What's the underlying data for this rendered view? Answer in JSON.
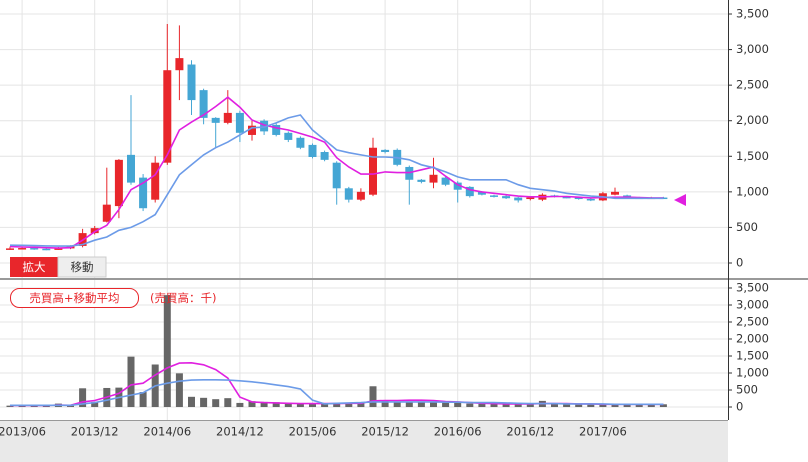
{
  "controls": [
    "拡大",
    "移動"
  ],
  "chart_data": [
    {
      "type": "candlestick",
      "x": [
        "2013/05",
        "2013/06",
        "2013/07",
        "2013/08",
        "2013/09",
        "2013/10",
        "2013/11",
        "2013/12",
        "2014/01",
        "2014/02",
        "2014/03",
        "2014/04",
        "2014/05",
        "2014/06",
        "2014/07",
        "2014/08",
        "2014/09",
        "2014/10",
        "2014/11",
        "2014/12",
        "2015/01",
        "2015/02",
        "2015/03",
        "2015/04",
        "2015/05",
        "2015/06",
        "2015/07",
        "2015/08",
        "2015/09",
        "2015/10",
        "2015/11",
        "2015/12",
        "2016/01",
        "2016/02",
        "2016/03",
        "2016/04",
        "2016/05",
        "2016/06",
        "2016/07",
        "2016/08",
        "2016/09",
        "2016/10",
        "2016/11",
        "2016/12",
        "2017/01",
        "2017/02",
        "2017/03",
        "2017/04",
        "2017/05",
        "2017/06",
        "2017/07",
        "2017/08",
        "2017/09",
        "2017/10",
        "2017/11"
      ],
      "open": [
        200,
        205,
        210,
        200,
        195,
        205,
        240,
        420,
        580,
        800,
        1520,
        1200,
        890,
        1410,
        2710,
        2790,
        2430,
        2040,
        1970,
        2110,
        1800,
        2000,
        1940,
        1830,
        1760,
        1660,
        1560,
        1410,
        1050,
        890,
        960,
        1590,
        1590,
        1350,
        1170,
        1130,
        1200,
        1130,
        1070,
        1000,
        950,
        940,
        920,
        900,
        890,
        950,
        930,
        920,
        900,
        880,
        960,
        950,
        920,
        910,
        920
      ],
      "high": [
        230,
        230,
        230,
        220,
        225,
        250,
        480,
        520,
        1340,
        1460,
        2360,
        1250,
        1500,
        3360,
        3340,
        2850,
        2450,
        2050,
        2430,
        2140,
        2000,
        2020,
        1960,
        1850,
        1780,
        1680,
        1580,
        1430,
        1070,
        1050,
        1760,
        1600,
        1610,
        1370,
        1180,
        1480,
        1220,
        1150,
        1080,
        1010,
        960,
        950,
        930,
        940,
        980,
        960,
        940,
        930,
        910,
        1000,
        1060,
        960,
        930,
        930,
        930
      ],
      "low": [
        185,
        190,
        185,
        180,
        185,
        195,
        220,
        400,
        570,
        630,
        1100,
        730,
        850,
        1380,
        2290,
        2080,
        1950,
        1620,
        1950,
        1700,
        1720,
        1800,
        1780,
        1700,
        1600,
        1470,
        1430,
        820,
        850,
        870,
        940,
        1540,
        1360,
        820,
        1120,
        1050,
        1080,
        850,
        920,
        950,
        920,
        900,
        850,
        880,
        870,
        920,
        910,
        890,
        870,
        870,
        950,
        900,
        900,
        900,
        900
      ],
      "close": [
        205,
        210,
        200,
        195,
        205,
        240,
        420,
        490,
        820,
        1450,
        1130,
        770,
        1410,
        2710,
        2880,
        2290,
        2040,
        1970,
        2110,
        1830,
        1930,
        1850,
        1800,
        1730,
        1620,
        1490,
        1450,
        1050,
        890,
        1000,
        1620,
        1560,
        1380,
        1170,
        1140,
        1240,
        1100,
        1030,
        940,
        960,
        930,
        910,
        880,
        920,
        960,
        930,
        920,
        900,
        880,
        980,
        1000,
        920,
        910,
        920,
        910
      ],
      "up_color": "#e8262b",
      "down_color": "#44a6d4",
      "series": [
        {
          "color": "#e020e0",
          "values": [
            230,
            225,
            220,
            215,
            210,
            215,
            320,
            440,
            530,
            750,
            1030,
            1125,
            1240,
            1520,
            1870,
            1980,
            2080,
            2200,
            2330,
            2190,
            2010,
            1940,
            1900,
            1870,
            1820,
            1770,
            1700,
            1480,
            1350,
            1250,
            1250,
            1280,
            1270,
            1270,
            1310,
            1350,
            1220,
            1100,
            1030,
            1000,
            980,
            960,
            940,
            930,
            930,
            935,
            935,
            925,
            915,
            920,
            925,
            925,
            920,
            915,
            915
          ]
        },
        {
          "color": "#6c9be8",
          "values": [
            250,
            248,
            245,
            240,
            238,
            238,
            260,
            320,
            365,
            460,
            500,
            580,
            680,
            960,
            1240,
            1380,
            1520,
            1620,
            1700,
            1800,
            1900,
            1910,
            1970,
            2040,
            2080,
            1870,
            1730,
            1590,
            1550,
            1520,
            1490,
            1490,
            1480,
            1450,
            1380,
            1340,
            1280,
            1210,
            1170,
            1170,
            1170,
            1170,
            1100,
            1050,
            1030,
            1010,
            980,
            960,
            940,
            930,
            910,
            910,
            910,
            910,
            910
          ]
        }
      ],
      "ylim": [
        -211,
        3697
      ],
      "yticks": [
        0,
        500,
        {
          "value": 1000,
          "label": "1,000"
        },
        {
          "value": 1500,
          "label": "1,500"
        },
        {
          "value": 2000,
          "label": "2,000"
        },
        {
          "value": 2500,
          "label": "2,500"
        },
        {
          "value": 3000,
          "label": "3,000"
        },
        {
          "value": 3500,
          "label": "3,500"
        }
      ],
      "grid": true
    },
    {
      "type": "bar",
      "title": "売買高+移動平均",
      "unit_label": "(売買高：千)",
      "x": [
        "2013/05",
        "2013/06",
        "2013/07",
        "2013/08",
        "2013/09",
        "2013/10",
        "2013/11",
        "2013/12",
        "2014/01",
        "2014/02",
        "2014/03",
        "2014/04",
        "2014/05",
        "2014/06",
        "2014/07",
        "2014/08",
        "2014/09",
        "2014/10",
        "2014/11",
        "2014/12",
        "2015/01",
        "2015/02",
        "2015/03",
        "2015/04",
        "2015/05",
        "2015/06",
        "2015/07",
        "2015/08",
        "2015/09",
        "2015/10",
        "2015/11",
        "2015/12",
        "2016/01",
        "2016/02",
        "2016/03",
        "2016/04",
        "2016/05",
        "2016/06",
        "2016/07",
        "2016/08",
        "2016/09",
        "2016/10",
        "2016/11",
        "2016/12",
        "2017/01",
        "2017/02",
        "2017/03",
        "2017/04",
        "2017/05",
        "2017/06",
        "2017/07",
        "2017/08",
        "2017/09",
        "2017/10",
        "2017/11"
      ],
      "values": [
        40,
        40,
        40,
        40,
        100,
        40,
        550,
        150,
        560,
        570,
        1480,
        440,
        1250,
        3290,
        990,
        300,
        270,
        230,
        260,
        120,
        170,
        150,
        140,
        120,
        110,
        100,
        100,
        120,
        110,
        110,
        610,
        180,
        160,
        160,
        150,
        150,
        150,
        120,
        100,
        90,
        90,
        80,
        90,
        80,
        180,
        90,
        80,
        80,
        80,
        90,
        70,
        70,
        70,
        80,
        80
      ],
      "color": "#666666",
      "series": [
        {
          "color": "#e020e0",
          "values": [
            45,
            45,
            45,
            45,
            55,
            50,
            150,
            190,
            290,
            400,
            650,
            700,
            940,
            1150,
            1290,
            1300,
            1240,
            1100,
            850,
            290,
            150,
            130,
            120,
            110,
            100,
            100,
            100,
            100,
            110,
            110,
            180,
            190,
            190,
            200,
            200,
            190,
            160,
            150,
            130,
            110,
            100,
            90,
            90,
            90,
            100,
            100,
            100,
            90,
            90,
            80,
            80,
            80,
            80,
            80,
            80
          ]
        },
        {
          "color": "#6c9be8",
          "values": [
            50,
            50,
            50,
            50,
            50,
            50,
            90,
            130,
            200,
            280,
            350,
            420,
            620,
            700,
            760,
            790,
            800,
            800,
            790,
            770,
            740,
            700,
            650,
            600,
            530,
            200,
            90,
            110,
            120,
            130,
            150,
            150,
            150,
            150,
            150,
            150,
            140,
            140,
            130,
            130,
            130,
            120,
            110,
            100,
            100,
            100,
            90,
            90,
            90,
            90,
            80,
            80,
            80,
            80,
            80
          ]
        }
      ],
      "ylim": [
        -382,
        3735
      ],
      "yticks": [
        0,
        500,
        {
          "value": 1000,
          "label": "1,000"
        },
        {
          "value": 1500,
          "label": "1,500"
        },
        {
          "value": 2000,
          "label": "2,000"
        },
        {
          "value": 2500,
          "label": "2,500"
        },
        {
          "value": 3000,
          "label": "3,000"
        },
        {
          "value": 3500,
          "label": "3,500"
        }
      ],
      "xticks": [
        "2013/06",
        "2013/12",
        "2014/06",
        "2014/12",
        "2015/06",
        "2015/12",
        "2016/06",
        "2016/12",
        "2017/06"
      ],
      "grid": true
    }
  ]
}
